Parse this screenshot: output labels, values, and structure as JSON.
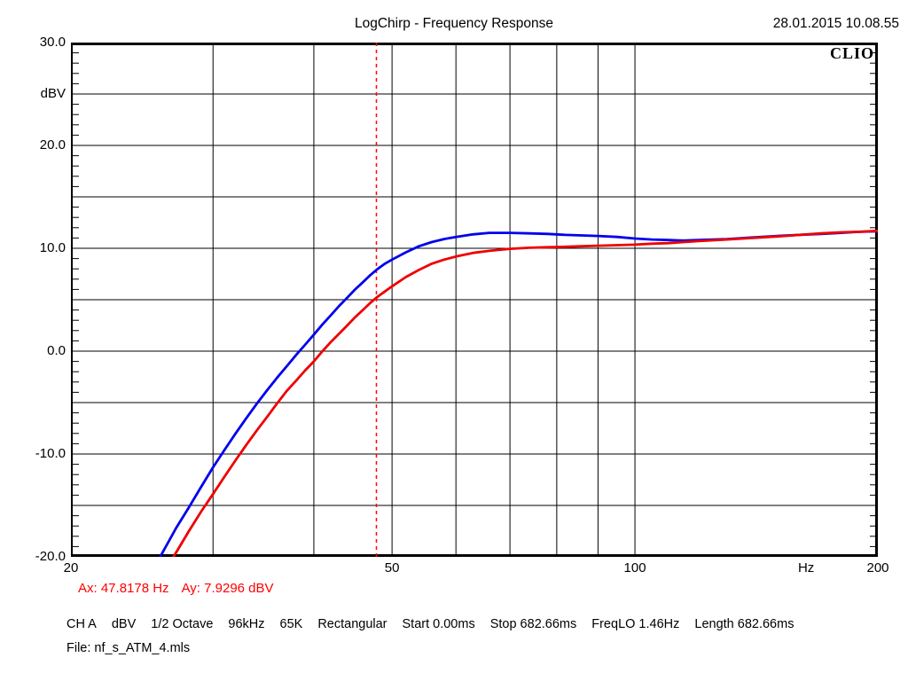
{
  "header": {
    "title": "LogChirp - Frequency Response",
    "timestamp": "28.01.2015 10.08.55"
  },
  "chart_data": {
    "type": "line",
    "title": "LogChirp - Frequency Response",
    "logo": "CLIO",
    "grid_color": "#000000",
    "x_axis": {
      "scale": "log",
      "min": 20,
      "max": 200,
      "unit": "Hz",
      "tick_labels": [
        {
          "f": 20,
          "label": "20"
        },
        {
          "f": 50,
          "label": "50"
        },
        {
          "f": 100,
          "label": "100"
        },
        {
          "f": 200,
          "label": "200"
        }
      ],
      "unit_label": "Hz",
      "unit_label_f": 163,
      "gridlines": [
        30,
        40,
        50,
        60,
        70,
        80,
        90,
        100
      ]
    },
    "y_axis": {
      "min": -20,
      "max": 30,
      "unit": "dBV",
      "gridline_step": 5,
      "minor_tick_step": 1,
      "gridlines": [
        25,
        20,
        15,
        10,
        5,
        0,
        -5,
        -10,
        -15
      ],
      "labels": [
        {
          "v": 30,
          "label": "30.0"
        },
        {
          "v": 25,
          "label": "dBV"
        },
        {
          "v": 20,
          "label": "20.0"
        },
        {
          "v": 10,
          "label": "10.0"
        },
        {
          "v": 0,
          "label": "0.0"
        },
        {
          "v": -10,
          "label": "-10.0"
        },
        {
          "v": -20,
          "label": "-20.0"
        }
      ]
    },
    "cursor": {
      "frequency_hz": 47.8178,
      "value_dbv": 7.9296,
      "color": "#ff0000",
      "dash": "4 4"
    },
    "series": [
      {
        "name": "response-blue",
        "color": "#0000ee",
        "points": [
          [
            25.8,
            -20
          ],
          [
            27,
            -17.2
          ],
          [
            28,
            -15.2
          ],
          [
            29,
            -13.2
          ],
          [
            30,
            -11.3
          ],
          [
            31,
            -9.6
          ],
          [
            32,
            -8
          ],
          [
            33,
            -6.5
          ],
          [
            34,
            -5.1
          ],
          [
            35,
            -3.8
          ],
          [
            36,
            -2.6
          ],
          [
            37,
            -1.5
          ],
          [
            38,
            -0.4
          ],
          [
            39,
            0.6
          ],
          [
            40,
            1.6
          ],
          [
            41,
            2.6
          ],
          [
            42,
            3.5
          ],
          [
            43,
            4.4
          ],
          [
            44,
            5.2
          ],
          [
            45,
            6
          ],
          [
            46,
            6.7
          ],
          [
            47,
            7.4
          ],
          [
            48,
            8
          ],
          [
            49,
            8.5
          ],
          [
            50,
            8.9
          ],
          [
            52,
            9.6
          ],
          [
            54,
            10.2
          ],
          [
            56,
            10.6
          ],
          [
            58,
            10.9
          ],
          [
            60,
            11.1
          ],
          [
            63,
            11.35
          ],
          [
            66,
            11.5
          ],
          [
            70,
            11.5
          ],
          [
            74,
            11.45
          ],
          [
            78,
            11.4
          ],
          [
            82,
            11.3
          ],
          [
            86,
            11.25
          ],
          [
            90,
            11.2
          ],
          [
            95,
            11.1
          ],
          [
            100,
            10.95
          ],
          [
            105,
            10.85
          ],
          [
            110,
            10.8
          ],
          [
            115,
            10.75
          ],
          [
            120,
            10.8
          ],
          [
            130,
            10.9
          ],
          [
            140,
            11.05
          ],
          [
            150,
            11.2
          ],
          [
            160,
            11.3
          ],
          [
            170,
            11.4
          ],
          [
            180,
            11.5
          ],
          [
            190,
            11.6
          ],
          [
            200,
            11.65
          ]
        ]
      },
      {
        "name": "response-red",
        "color": "#ee0000",
        "points": [
          [
            26.8,
            -20
          ],
          [
            28,
            -17.5
          ],
          [
            29,
            -15.6
          ],
          [
            30,
            -13.9
          ],
          [
            31,
            -12.2
          ],
          [
            32,
            -10.6
          ],
          [
            33,
            -9.1
          ],
          [
            34,
            -7.7
          ],
          [
            35,
            -6.4
          ],
          [
            36,
            -5.1
          ],
          [
            37,
            -3.9
          ],
          [
            38,
            -2.9
          ],
          [
            39,
            -1.9
          ],
          [
            40,
            -1
          ],
          [
            41,
            0
          ],
          [
            42,
            0.9
          ],
          [
            43,
            1.7
          ],
          [
            44,
            2.5
          ],
          [
            45,
            3.3
          ],
          [
            46,
            4
          ],
          [
            47,
            4.7
          ],
          [
            48,
            5.3
          ],
          [
            49,
            5.8
          ],
          [
            50,
            6.3
          ],
          [
            52,
            7.2
          ],
          [
            54,
            7.9
          ],
          [
            56,
            8.5
          ],
          [
            58,
            8.9
          ],
          [
            60,
            9.2
          ],
          [
            63,
            9.55
          ],
          [
            66,
            9.75
          ],
          [
            70,
            9.95
          ],
          [
            74,
            10.05
          ],
          [
            78,
            10.1
          ],
          [
            82,
            10.15
          ],
          [
            86,
            10.2
          ],
          [
            90,
            10.25
          ],
          [
            95,
            10.3
          ],
          [
            100,
            10.35
          ],
          [
            105,
            10.45
          ],
          [
            110,
            10.5
          ],
          [
            115,
            10.6
          ],
          [
            120,
            10.7
          ],
          [
            130,
            10.85
          ],
          [
            140,
            11
          ],
          [
            150,
            11.15
          ],
          [
            160,
            11.3
          ],
          [
            170,
            11.45
          ],
          [
            180,
            11.55
          ],
          [
            190,
            11.6
          ],
          [
            200,
            11.7
          ]
        ]
      }
    ]
  },
  "cursor_readout": {
    "ax": "Ax: 47.8178 Hz",
    "ay": "Ay: 7.9296 dBV"
  },
  "status_bar": {
    "tokens": [
      "CH A",
      "dBV",
      "1/2 Octave",
      "96kHz",
      "65K",
      "Rectangular",
      "Start 0.00ms",
      "Stop 682.66ms",
      "FreqLO 1.46Hz",
      "Length 682.66ms"
    ]
  },
  "footer": {
    "file_label": "File: nf_s_ATM_4.mls"
  }
}
